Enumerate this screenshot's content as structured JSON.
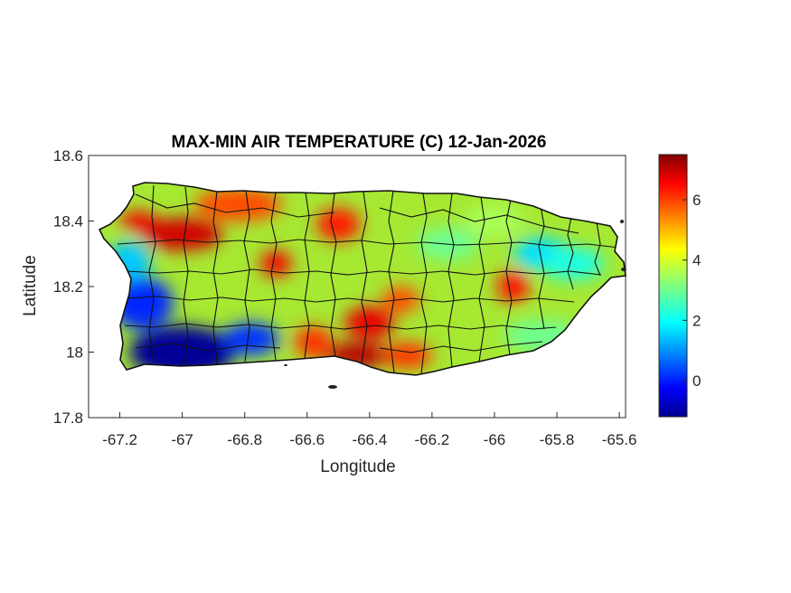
{
  "title": "MAX-MIN AIR TEMPERATURE (C) 12-Jan-2026",
  "x_axis": {
    "label": "Longitude",
    "min": -67.3,
    "max": -65.58,
    "ticks": [
      -67.2,
      -67,
      -66.8,
      -66.6,
      -66.4,
      -66.2,
      -66,
      -65.8,
      -65.6
    ],
    "tick_labels": [
      "-67.2",
      "-67",
      "-66.8",
      "-66.6",
      "-66.4",
      "-66.2",
      "-66",
      "-65.8",
      "-65.6"
    ]
  },
  "y_axis": {
    "label": "Latitude",
    "min": 17.8,
    "max": 18.6,
    "ticks": [
      17.8,
      18,
      18.2,
      18.4,
      18.6
    ],
    "tick_labels": [
      "17.8",
      "18",
      "18.2",
      "18.4",
      "18.6"
    ]
  },
  "colorbar": {
    "min": -1.2,
    "max": 7.5,
    "colormap": "jet",
    "ticks": [
      0,
      2,
      4,
      6
    ],
    "tick_labels": [
      "0",
      "2",
      "4",
      "6"
    ]
  },
  "chart_data": {
    "type": "heatmap",
    "title": "MAX-MIN AIR TEMPERATURE (C) 12-Jan-2026",
    "xlabel": "Longitude",
    "ylabel": "Latitude",
    "xlim": [
      -67.3,
      -65.58
    ],
    "ylim": [
      17.8,
      18.6
    ],
    "value_range": [
      -1.2,
      7.5
    ],
    "colormap": "jet",
    "grid": false,
    "legend": "colorbar right",
    "hotspots": [
      {
        "lon": -67.0,
        "lat": 18.36,
        "value": 6.8,
        "rx": 0.13,
        "ry": 0.05
      },
      {
        "lon": -67.14,
        "lat": 18.4,
        "value": 6.5,
        "rx": 0.06,
        "ry": 0.03
      },
      {
        "lon": -66.7,
        "lat": 18.27,
        "value": 6.5,
        "rx": 0.05,
        "ry": 0.04
      },
      {
        "lon": -66.5,
        "lat": 18.39,
        "value": 6.2,
        "rx": 0.07,
        "ry": 0.05
      },
      {
        "lon": -66.82,
        "lat": 18.45,
        "value": 5.8,
        "rx": 0.14,
        "ry": 0.05
      },
      {
        "lon": -66.44,
        "lat": 17.99,
        "value": 7.0,
        "rx": 0.1,
        "ry": 0.04
      },
      {
        "lon": -66.4,
        "lat": 18.09,
        "value": 6.6,
        "rx": 0.08,
        "ry": 0.05
      },
      {
        "lon": -66.28,
        "lat": 17.99,
        "value": 6.0,
        "rx": 0.08,
        "ry": 0.04
      },
      {
        "lon": -66.58,
        "lat": 18.03,
        "value": 6.0,
        "rx": 0.06,
        "ry": 0.05
      },
      {
        "lon": -65.94,
        "lat": 18.2,
        "value": 6.3,
        "rx": 0.05,
        "ry": 0.05
      },
      {
        "lon": -66.3,
        "lat": 18.16,
        "value": 5.8,
        "rx": 0.06,
        "ry": 0.04
      },
      {
        "lon": -67.0,
        "lat": 18.0,
        "value": -1.0,
        "rx": 0.17,
        "ry": 0.08
      },
      {
        "lon": -67.13,
        "lat": 18.15,
        "value": 0.2,
        "rx": 0.1,
        "ry": 0.08
      },
      {
        "lon": -66.78,
        "lat": 18.04,
        "value": 0.3,
        "rx": 0.09,
        "ry": 0.05
      },
      {
        "lon": -67.17,
        "lat": 18.28,
        "value": 1.6,
        "rx": 0.07,
        "ry": 0.06
      },
      {
        "lon": -65.85,
        "lat": 18.3,
        "value": 1.8,
        "rx": 0.09,
        "ry": 0.05
      },
      {
        "lon": -65.75,
        "lat": 18.27,
        "value": 2.3,
        "rx": 0.1,
        "ry": 0.05
      },
      {
        "lon": -66.15,
        "lat": 18.33,
        "value": 3.0,
        "rx": 0.1,
        "ry": 0.05
      },
      {
        "lon": -66.0,
        "lat": 18.4,
        "value": 3.5,
        "rx": 0.1,
        "ry": 0.05
      },
      {
        "lon": -65.85,
        "lat": 18.05,
        "value": 3.0,
        "rx": 0.12,
        "ry": 0.05
      }
    ]
  }
}
